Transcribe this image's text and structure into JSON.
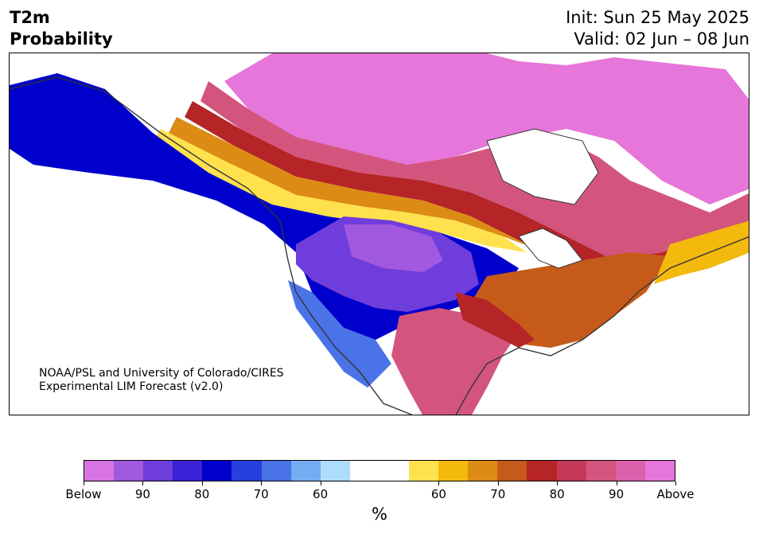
{
  "title": {
    "line1": "T2m",
    "line2": "Probability"
  },
  "dates": {
    "init": "Init: Sun 25 May 2025",
    "valid": "Valid: 02 Jun – 08 Jun"
  },
  "credit": {
    "line1": "NOAA/PSL and University of Colorado/CIRES",
    "line2": "Experimental LIM Forecast (v2.0)"
  },
  "colorbar": {
    "colors": [
      "#d873e6",
      "#a159e0",
      "#6e3ddb",
      "#3a21d6",
      "#0000cc",
      "#2540dc",
      "#4a73e8",
      "#74aef2",
      "#aedcfb",
      "#ffffff",
      "#ffffff",
      "#ffe14d",
      "#f3b90d",
      "#dc8b14",
      "#c65a1a",
      "#b52426",
      "#c43a56",
      "#d3557e",
      "#dd60ad",
      "#e676d9"
    ],
    "tick_labels": [
      "Below",
      "90",
      "80",
      "70",
      "60",
      "60",
      "70",
      "80",
      "90",
      "Above"
    ],
    "unit": "%"
  }
}
